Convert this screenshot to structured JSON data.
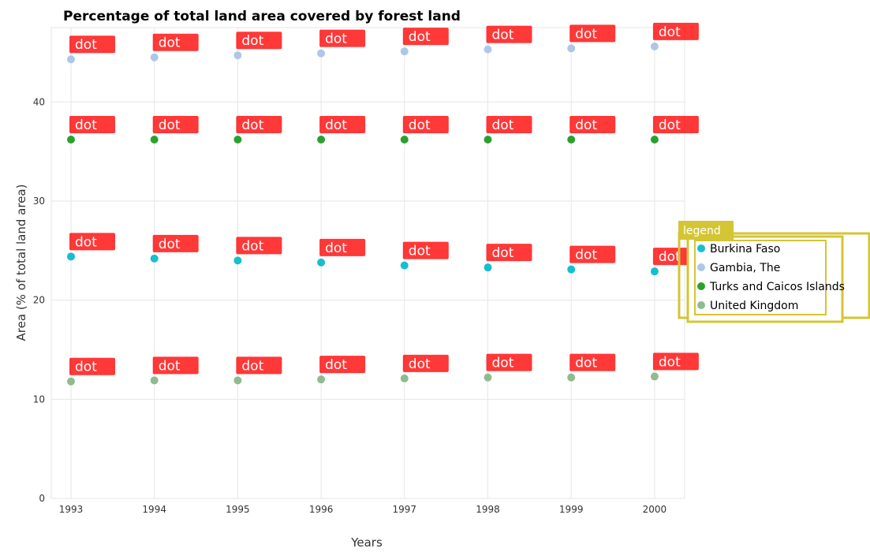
{
  "chart_data": {
    "type": "scatter",
    "title": "Percentage of total land area covered by forest land",
    "xlabel": "Years",
    "ylabel": "Area (% of total land area)",
    "categories": [
      "1993",
      "1994",
      "1995",
      "1996",
      "1997",
      "1998",
      "1999",
      "2000"
    ],
    "ylim": [
      0,
      47.5
    ],
    "yticks": [
      0,
      10,
      20,
      30,
      40
    ],
    "grid": true,
    "legend": {
      "title": "legend",
      "placement": "right"
    },
    "point_label": "dot",
    "series": [
      {
        "name": "Burkina Faso",
        "color": "#17becf",
        "values": [
          24.4,
          24.2,
          24.0,
          23.8,
          23.5,
          23.3,
          23.1,
          22.9
        ]
      },
      {
        "name": "Gambia, The",
        "color": "#aec7e8",
        "values": [
          44.3,
          44.5,
          44.7,
          44.9,
          45.1,
          45.3,
          45.4,
          45.6
        ]
      },
      {
        "name": "Turks and Caicos Islands",
        "color": "#2ca02c",
        "values": [
          36.2,
          36.2,
          36.2,
          36.2,
          36.2,
          36.2,
          36.2,
          36.2
        ]
      },
      {
        "name": "United Kingdom",
        "color": "#8fbc8f",
        "values": [
          11.8,
          11.9,
          11.9,
          12.0,
          12.1,
          12.2,
          12.2,
          12.3
        ]
      }
    ]
  }
}
